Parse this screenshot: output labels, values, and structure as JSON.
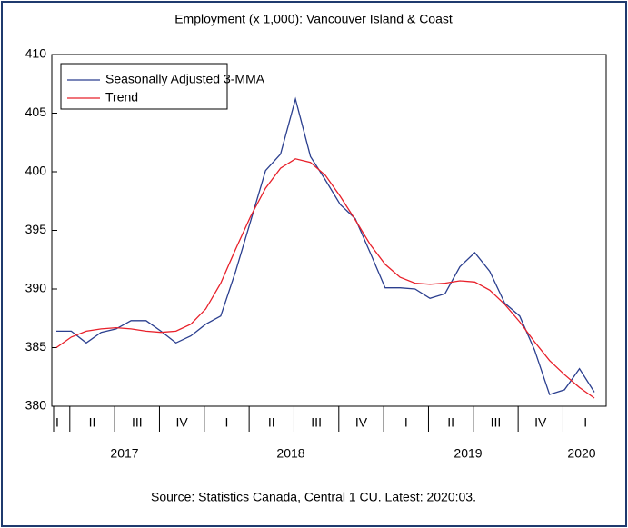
{
  "chart_data": {
    "type": "line",
    "title": "Employment (x 1,000): Vancouver Island & Coast",
    "source": "Source:  Statistics Canada, Central 1 CU. Latest: 2020:03.",
    "quarter_labels": [
      "I",
      "II",
      "III",
      "IV",
      "I",
      "II",
      "III",
      "IV",
      "I",
      "II",
      "III",
      "IV",
      "I"
    ],
    "year_labels": [
      "2017",
      "2018",
      "2019",
      "2020"
    ],
    "series": [
      {
        "name": "Seasonally Adjusted 3-MMA",
        "color": "#2b3f8f",
        "values": [
          386.4,
          386.4,
          385.4,
          386.3,
          386.6,
          387.3,
          387.3,
          386.4,
          385.4,
          386.0,
          387.0,
          387.7,
          391.5,
          395.8,
          400.1,
          401.5,
          406.2,
          401.3,
          399.3,
          397.2,
          396.0,
          393.1,
          390.1,
          390.1,
          390.0,
          389.2,
          389.6,
          391.9,
          393.1,
          391.5,
          388.8,
          387.7,
          384.8,
          381.0,
          381.4,
          383.2,
          381.2
        ]
      },
      {
        "name": "Trend",
        "color": "#e8202a",
        "values": [
          385.0,
          385.9,
          386.4,
          386.6,
          386.7,
          386.6,
          386.4,
          386.3,
          386.4,
          387.0,
          388.3,
          390.5,
          393.4,
          396.2,
          398.6,
          400.3,
          401.1,
          400.8,
          399.7,
          397.9,
          395.9,
          393.8,
          392.1,
          391.0,
          390.5,
          390.4,
          390.5,
          390.7,
          390.6,
          389.9,
          388.7,
          387.2,
          385.5,
          383.9,
          382.7,
          381.6,
          380.7
        ]
      }
    ],
    "ylim": [
      380,
      410
    ],
    "yticks": [
      380,
      385,
      390,
      395,
      400,
      405,
      410
    ],
    "legend": "upper left"
  }
}
